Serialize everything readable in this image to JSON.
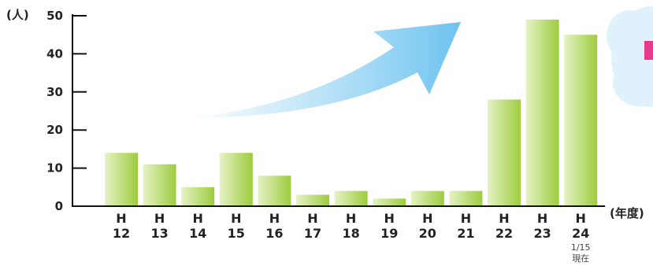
{
  "chart_data": {
    "type": "bar",
    "ylabel": "(人)",
    "xlabel": "(年度)",
    "ylim": [
      0,
      50
    ],
    "yticks": [
      0,
      10,
      20,
      30,
      40,
      50
    ],
    "grid": false,
    "categories": [
      {
        "era": "H",
        "year": "12"
      },
      {
        "era": "H",
        "year": "13"
      },
      {
        "era": "H",
        "year": "14"
      },
      {
        "era": "H",
        "year": "15"
      },
      {
        "era": "H",
        "year": "16"
      },
      {
        "era": "H",
        "year": "17"
      },
      {
        "era": "H",
        "year": "18"
      },
      {
        "era": "H",
        "year": "19"
      },
      {
        "era": "H",
        "year": "20"
      },
      {
        "era": "H",
        "year": "21"
      },
      {
        "era": "H",
        "year": "22"
      },
      {
        "era": "H",
        "year": "23"
      },
      {
        "era": "H",
        "year": "24"
      }
    ],
    "values": [
      14,
      11,
      5,
      14,
      8,
      3,
      4,
      2,
      4,
      4,
      28,
      49,
      45
    ],
    "annotation": {
      "category_index": 12,
      "lines": [
        "1/15",
        "現在"
      ]
    },
    "bar_color_top": "#e6f2c4",
    "bar_color_bottom": "#9dcc3e",
    "arrow_color": "#6ec3f0",
    "axis_color": "#111111"
  },
  "decoration": {
    "bubble_color": "#dff1fb",
    "partial_text_color": "#e83a8c"
  }
}
